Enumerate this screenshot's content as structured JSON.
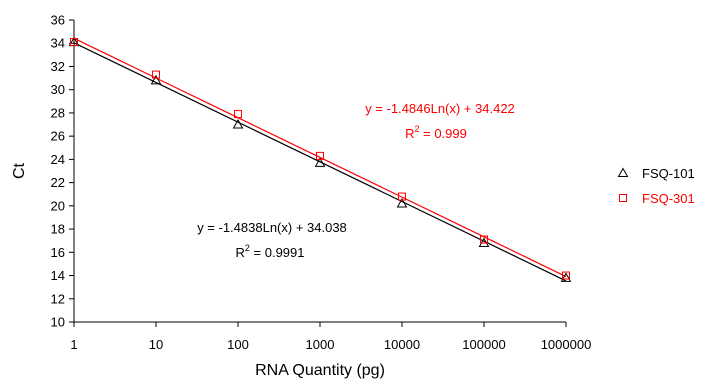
{
  "chart_data": {
    "type": "scatter",
    "xlabel": "RNA Quantity (pg)",
    "ylabel": "Ct",
    "x_scale": "log",
    "xlim": [
      1,
      1000000
    ],
    "ylim": [
      10,
      36
    ],
    "x_ticks": [
      1,
      10,
      100,
      1000,
      10000,
      100000,
      1000000
    ],
    "x_tick_labels": [
      "1",
      "10",
      "100",
      "1000",
      "10000",
      "100000",
      "1000000"
    ],
    "y_ticks": [
      10,
      12,
      14,
      16,
      18,
      20,
      22,
      24,
      26,
      28,
      30,
      32,
      34,
      36
    ],
    "y_tick_labels": [
      "10",
      "12",
      "14",
      "16",
      "18",
      "20",
      "22",
      "24",
      "26",
      "28",
      "30",
      "32",
      "34",
      "36"
    ],
    "grid": false,
    "legend_position": "right",
    "series": [
      {
        "name": "FSQ-101",
        "marker": "triangle",
        "color": "#000000",
        "x": [
          1,
          10,
          100,
          1000,
          10000,
          100000,
          1000000
        ],
        "y": [
          34.1,
          30.8,
          27.0,
          23.7,
          20.2,
          16.8,
          13.8
        ],
        "trendline": {
          "type": "logarithmic",
          "slope": -1.4838,
          "intercept": 34.038,
          "equation": "y = -1.4838Ln(x) + 34.038",
          "r2_prefix": "R",
          "r2_sup": "2",
          "r2_value": " = 0.9991"
        }
      },
      {
        "name": "FSQ-301",
        "marker": "square",
        "color": "#ff0000",
        "x": [
          1,
          10,
          100,
          1000,
          10000,
          100000,
          1000000
        ],
        "y": [
          34.1,
          31.3,
          27.9,
          24.3,
          20.8,
          17.1,
          14.0
        ],
        "trendline": {
          "type": "logarithmic",
          "slope": -1.4846,
          "intercept": 34.422,
          "equation": "y = -1.4846Ln(x) + 34.422",
          "r2_prefix": "R",
          "r2_sup": "2",
          "r2_value": " = 0.999"
        }
      }
    ]
  }
}
